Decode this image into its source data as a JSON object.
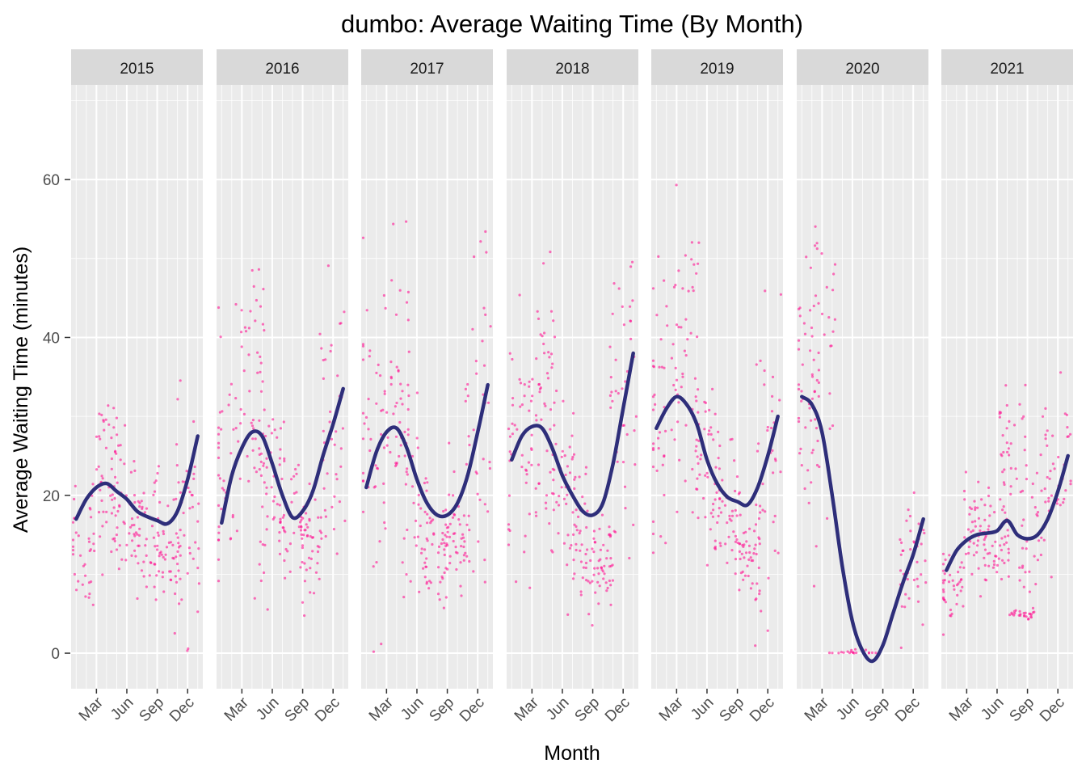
{
  "chart_data": {
    "type": "scatter",
    "title": "dumbo: Average Waiting Time (By Month)",
    "xlabel": "Month",
    "ylabel": "Average Waiting Time (minutes)",
    "ylim": [
      -4.5,
      72
    ],
    "y_ticks": [
      0,
      20,
      40,
      60
    ],
    "x_tick_labels": [
      "Mar",
      "Jun",
      "Sep",
      "Dec"
    ],
    "x_tick_months": [
      3,
      6,
      9,
      12
    ],
    "x_range_months": [
      0.5,
      13.5
    ],
    "grid": true,
    "colors": {
      "points": "#ff1493",
      "smooth_line": "#2e2e7a",
      "panel_bg": "#ebebeb",
      "strip_bg": "#d9d9d9",
      "grid": "#ffffff"
    },
    "facets": [
      {
        "label": "2015",
        "smooth": [
          [
            1,
            17
          ],
          [
            2,
            19.5
          ],
          [
            3,
            21
          ],
          [
            4,
            21.5
          ],
          [
            5,
            20.5
          ],
          [
            6,
            19.5
          ],
          [
            7,
            18
          ],
          [
            8,
            17.3
          ],
          [
            9,
            16.8
          ],
          [
            10,
            16.4
          ],
          [
            11,
            18
          ],
          [
            12,
            22
          ],
          [
            13,
            27.5
          ]
        ],
        "clusters": [
          [
            1.5,
            15,
            5,
            40
          ],
          [
            4,
            22,
            5,
            50
          ],
          [
            6,
            18,
            5,
            45
          ],
          [
            8,
            16,
            4,
            40
          ],
          [
            10,
            13,
            3,
            45
          ],
          [
            12,
            16,
            7,
            40
          ]
        ]
      },
      {
        "label": "2016",
        "smooth": [
          [
            1,
            16.5
          ],
          [
            2,
            22.5
          ],
          [
            3,
            26
          ],
          [
            4,
            28
          ],
          [
            5,
            27.5
          ],
          [
            6,
            24
          ],
          [
            7,
            20
          ],
          [
            8,
            17.2
          ],
          [
            9,
            18
          ],
          [
            10,
            20.5
          ],
          [
            11,
            25
          ],
          [
            12,
            29
          ],
          [
            13,
            33.5
          ]
        ],
        "clusters": [
          [
            1.5,
            22,
            8,
            40
          ],
          [
            4,
            33,
            9,
            50
          ],
          [
            6,
            20,
            6,
            45
          ],
          [
            8,
            15,
            4,
            40
          ],
          [
            10,
            15,
            4,
            45
          ],
          [
            12,
            28,
            10,
            40
          ]
        ]
      },
      {
        "label": "2017",
        "smooth": [
          [
            1,
            21
          ],
          [
            2,
            25.5
          ],
          [
            3,
            28
          ],
          [
            4,
            28.5
          ],
          [
            5,
            26
          ],
          [
            6,
            22
          ],
          [
            7,
            19
          ],
          [
            8,
            17.5
          ],
          [
            9,
            17.5
          ],
          [
            10,
            19
          ],
          [
            11,
            22.5
          ],
          [
            12,
            28
          ],
          [
            13,
            34
          ]
        ],
        "clusters": [
          [
            1.5,
            25,
            9,
            40
          ],
          [
            4,
            33,
            9,
            50
          ],
          [
            6,
            18,
            6,
            45
          ],
          [
            8,
            13,
            3,
            40
          ],
          [
            10,
            14,
            4,
            45
          ],
          [
            12,
            30,
            10,
            40
          ]
        ]
      },
      {
        "label": "2018",
        "smooth": [
          [
            1,
            24.5
          ],
          [
            2,
            27.5
          ],
          [
            3,
            28.7
          ],
          [
            4,
            28.5
          ],
          [
            5,
            26
          ],
          [
            6,
            22.5
          ],
          [
            7,
            20
          ],
          [
            8,
            18
          ],
          [
            9,
            17.5
          ],
          [
            10,
            19
          ],
          [
            11,
            24
          ],
          [
            12,
            31
          ],
          [
            13,
            38
          ]
        ],
        "clusters": [
          [
            1.5,
            25,
            8,
            40
          ],
          [
            4,
            32,
            11,
            55
          ],
          [
            6,
            22,
            6,
            45
          ],
          [
            8,
            14,
            4,
            40
          ],
          [
            10,
            12,
            3,
            45
          ],
          [
            12,
            28,
            12,
            40
          ]
        ]
      },
      {
        "label": "2019",
        "smooth": [
          [
            1,
            28.5
          ],
          [
            2,
            31
          ],
          [
            3,
            32.5
          ],
          [
            4,
            31.5
          ],
          [
            5,
            29
          ],
          [
            6,
            24.5
          ],
          [
            7,
            21.5
          ],
          [
            8,
            19.8
          ],
          [
            9,
            19.2
          ],
          [
            10,
            18.8
          ],
          [
            11,
            21
          ],
          [
            12,
            25
          ],
          [
            13,
            30
          ]
        ],
        "clusters": [
          [
            1.5,
            28,
            10,
            40
          ],
          [
            4,
            38,
            10,
            50
          ],
          [
            6,
            22,
            6,
            45
          ],
          [
            8,
            18,
            4,
            40
          ],
          [
            10,
            12,
            2,
            45
          ],
          [
            12,
            24,
            10,
            40
          ]
        ]
      },
      {
        "label": "2020",
        "smooth": [
          [
            1,
            32.5
          ],
          [
            2,
            31.5
          ],
          [
            3,
            28
          ],
          [
            4,
            20
          ],
          [
            5,
            11
          ],
          [
            6,
            4
          ],
          [
            7,
            0.3
          ],
          [
            8,
            -1
          ],
          [
            9,
            1
          ],
          [
            10,
            5
          ],
          [
            11,
            9
          ],
          [
            12,
            12.5
          ],
          [
            13,
            17
          ]
        ],
        "clusters": [
          [
            1.5,
            30,
            9,
            45
          ],
          [
            3,
            38,
            8,
            30
          ],
          [
            5,
            0,
            0.3,
            8
          ],
          [
            7,
            0,
            0.3,
            12
          ],
          [
            12,
            12,
            4,
            40
          ]
        ]
      },
      {
        "label": "2021",
        "smooth": [
          [
            1,
            10.5
          ],
          [
            2,
            13
          ],
          [
            3,
            14.3
          ],
          [
            4,
            15
          ],
          [
            5,
            15.2
          ],
          [
            6,
            15.5
          ],
          [
            7,
            16.8
          ],
          [
            8,
            15
          ],
          [
            9,
            14.5
          ],
          [
            10,
            15
          ],
          [
            11,
            17
          ],
          [
            12,
            20.5
          ],
          [
            13,
            25
          ]
        ],
        "clusters": [
          [
            1.5,
            9,
            2,
            40
          ],
          [
            4,
            16,
            3,
            50
          ],
          [
            6,
            13,
            3,
            40
          ],
          [
            7.5,
            26,
            4,
            35
          ],
          [
            8.5,
            5,
            0.3,
            25
          ],
          [
            9.5,
            17,
            5,
            35
          ],
          [
            12,
            22,
            5,
            45
          ]
        ]
      }
    ]
  }
}
